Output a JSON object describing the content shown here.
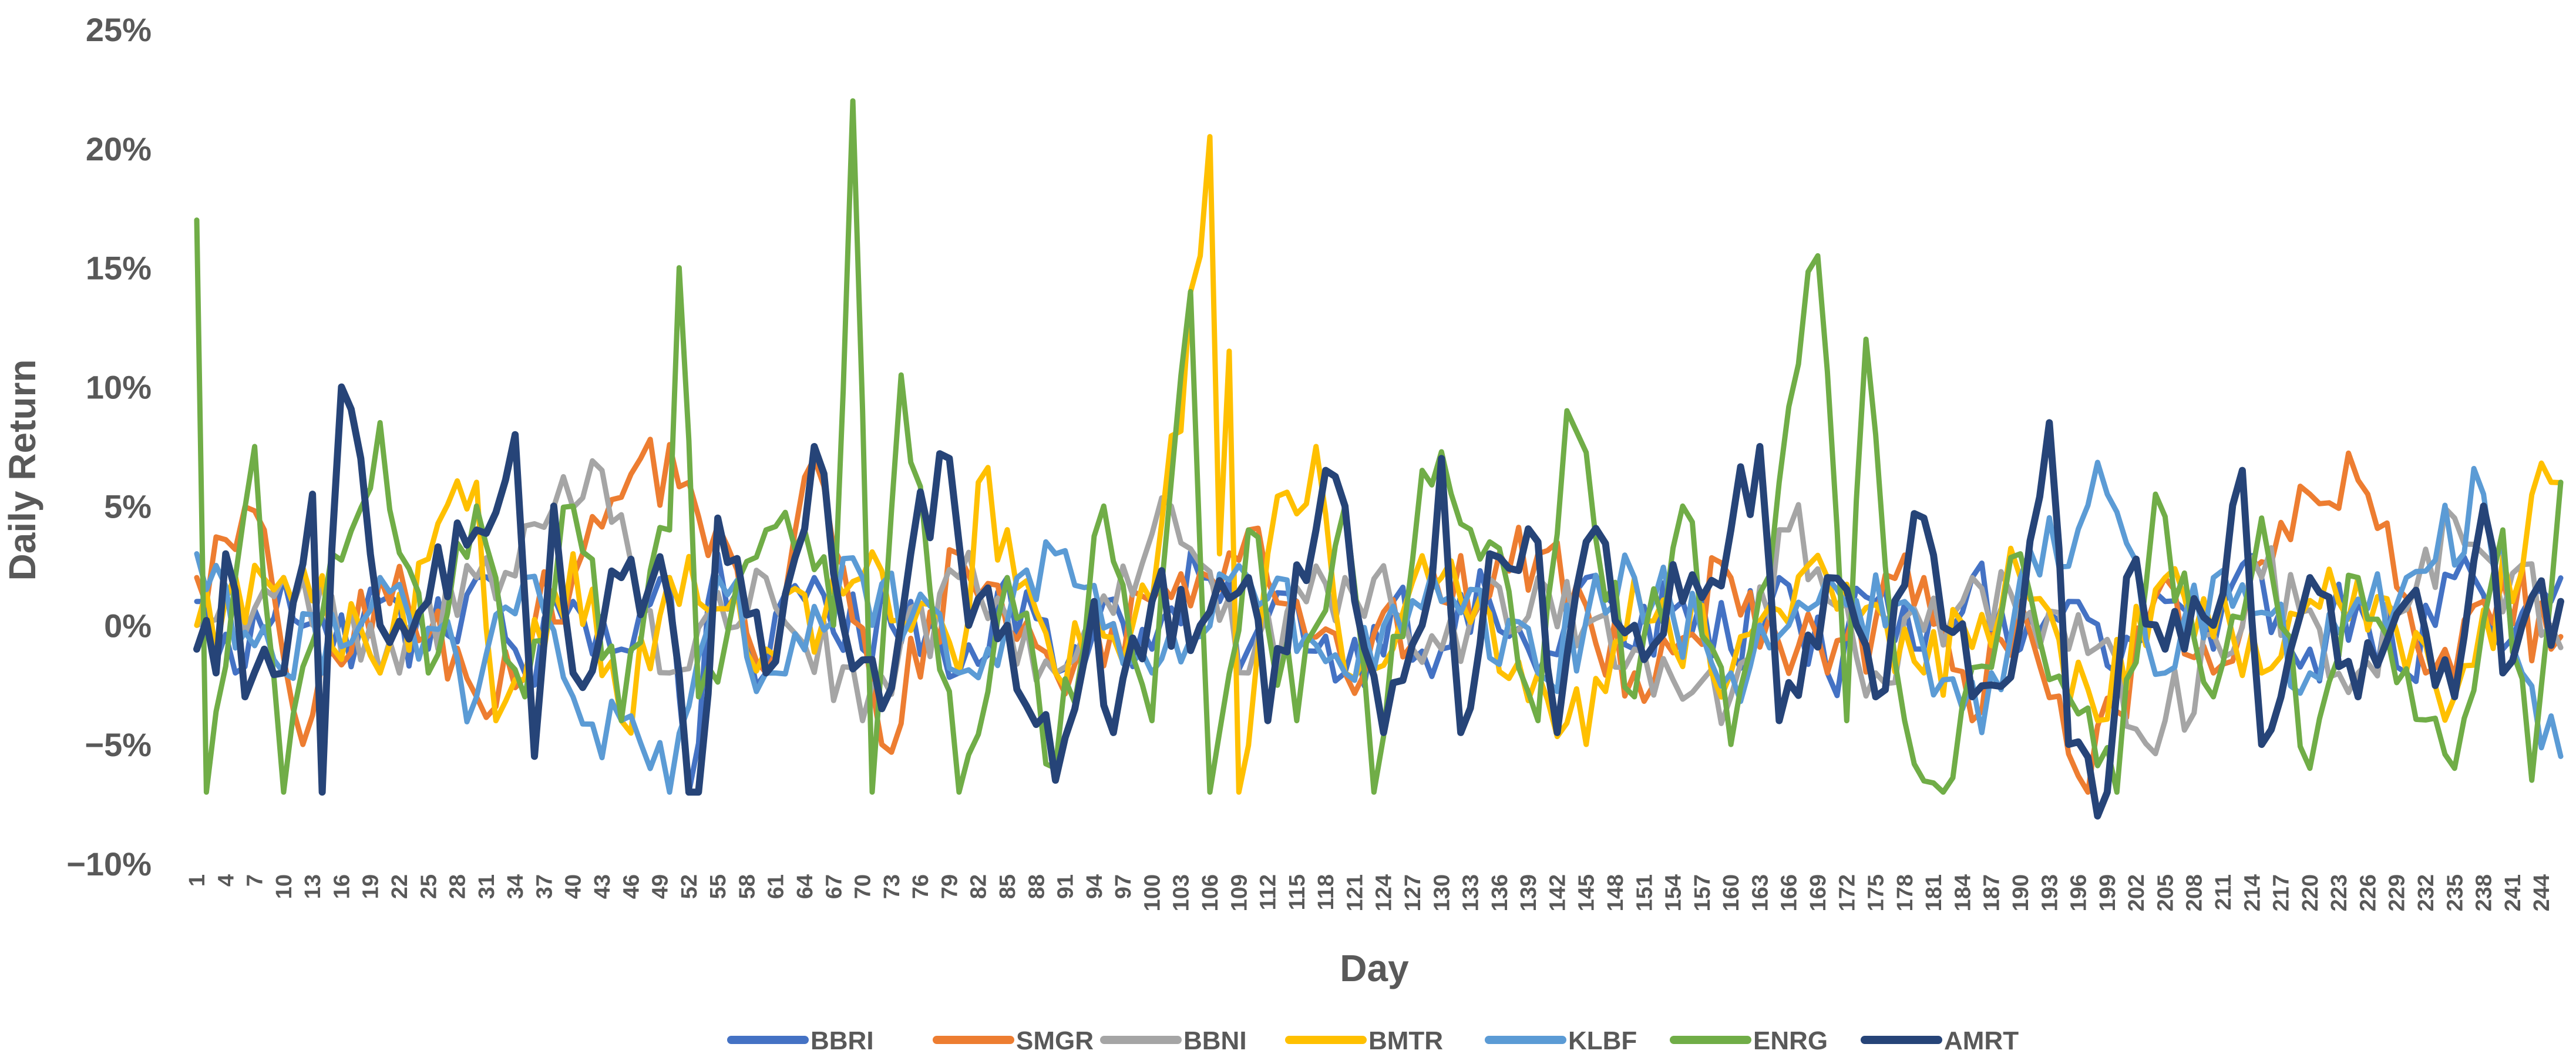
{
  "chart_data": {
    "type": "line",
    "title": "",
    "xlabel": "Day",
    "ylabel": "Daily Return",
    "ylim": [
      -0.1,
      0.25
    ],
    "yticks": [
      {
        "value": 0.25,
        "label": "25%"
      },
      {
        "value": 0.2,
        "label": "20%"
      },
      {
        "value": 0.15,
        "label": "15%"
      },
      {
        "value": 0.1,
        "label": "10%"
      },
      {
        "value": 0.05,
        "label": "5%"
      },
      {
        "value": 0.0,
        "label": "0%"
      },
      {
        "value": -0.05,
        "label": "−5%"
      },
      {
        "value": -0.1,
        "label": "−10%"
      }
    ],
    "x_start": 1,
    "x_end": 246,
    "x_tick_step": 3,
    "grid": false,
    "legend_position": "bottom",
    "series": [
      {
        "name": "BBRI",
        "color": "#4472C4",
        "width": 9,
        "anchors": [
          [
            1,
            0.01
          ],
          [
            5,
            -0.02
          ],
          [
            10,
            0.02
          ],
          [
            15,
            -0.01
          ],
          [
            20,
            0.01
          ],
          [
            25,
            -0.01
          ],
          [
            30,
            0.02
          ],
          [
            35,
            -0.02
          ],
          [
            40,
            0.01
          ],
          [
            45,
            -0.01
          ],
          [
            50,
            0.02
          ],
          [
            52,
            -0.07
          ],
          [
            55,
            0.03
          ],
          [
            60,
            -0.02
          ],
          [
            65,
            0.02
          ],
          [
            70,
            -0.01
          ],
          [
            75,
            0.01
          ],
          [
            80,
            -0.02
          ],
          [
            85,
            0.02
          ],
          [
            90,
            -0.02
          ],
          [
            95,
            0.01
          ],
          [
            100,
            -0.01
          ],
          [
            105,
            0.02
          ],
          [
            110,
            -0.01
          ],
          [
            115,
            0.01
          ],
          [
            120,
            -0.02
          ],
          [
            125,
            0.01
          ],
          [
            130,
            -0.01
          ],
          [
            135,
            0.01
          ],
          [
            140,
            -0.02
          ],
          [
            145,
            0.02
          ],
          [
            150,
            -0.01
          ],
          [
            155,
            0.01
          ],
          [
            160,
            -0.01
          ],
          [
            165,
            0.02
          ],
          [
            170,
            -0.02
          ],
          [
            175,
            0.01
          ],
          [
            180,
            -0.01
          ],
          [
            185,
            0.02
          ],
          [
            190,
            -0.01
          ],
          [
            195,
            0.01
          ],
          [
            200,
            -0.02
          ],
          [
            205,
            0.01
          ],
          [
            210,
            -0.01
          ],
          [
            215,
            0.02
          ],
          [
            220,
            -0.01
          ],
          [
            225,
            0.01
          ],
          [
            230,
            -0.02
          ],
          [
            235,
            0.02
          ],
          [
            240,
            -0.01
          ],
          [
            245,
            0.01
          ]
        ]
      },
      {
        "name": "SMGR",
        "color": "#ED7D31",
        "width": 9,
        "anchors": [
          [
            1,
            0.02
          ],
          [
            8,
            0.04
          ],
          [
            12,
            -0.05
          ],
          [
            20,
            0.02
          ],
          [
            30,
            -0.03
          ],
          [
            40,
            0.02
          ],
          [
            47,
            0.07
          ],
          [
            52,
            0.06
          ],
          [
            60,
            -0.02
          ],
          [
            65,
            0.07
          ],
          [
            72,
            -0.05
          ],
          [
            80,
            0.03
          ],
          [
            90,
            -0.02
          ],
          [
            100,
            0.01
          ],
          [
            110,
            0.04
          ],
          [
            120,
            -0.02
          ],
          [
            130,
            0.01
          ],
          [
            140,
            0.03
          ],
          [
            150,
            -0.02
          ],
          [
            160,
            0.02
          ],
          [
            170,
            -0.02
          ],
          [
            180,
            0.02
          ],
          [
            185,
            -0.04
          ],
          [
            190,
            0.01
          ],
          [
            197,
            -0.07
          ],
          [
            205,
            0.02
          ],
          [
            210,
            -0.02
          ],
          [
            220,
            0.055
          ],
          [
            226,
            0.055
          ],
          [
            232,
            -0.02
          ],
          [
            240,
            0.02
          ],
          [
            245,
            -0.01
          ]
        ]
      },
      {
        "name": "BBNI",
        "color": "#A5A5A5",
        "width": 9,
        "anchors": [
          [
            1,
            0.0
          ],
          [
            10,
            0.02
          ],
          [
            20,
            -0.02
          ],
          [
            30,
            0.02
          ],
          [
            43,
            0.065
          ],
          [
            50,
            -0.02
          ],
          [
            60,
            0.02
          ],
          [
            70,
            -0.04
          ],
          [
            80,
            0.02
          ],
          [
            90,
            -0.02
          ],
          [
            102,
            0.05
          ],
          [
            110,
            -0.02
          ],
          [
            120,
            0.02
          ],
          [
            130,
            -0.01
          ],
          [
            140,
            0.02
          ],
          [
            150,
            -0.01
          ],
          [
            160,
            -0.03
          ],
          [
            166,
            0.04
          ],
          [
            175,
            -0.02
          ],
          [
            185,
            0.02
          ],
          [
            195,
            -0.01
          ],
          [
            205,
            -0.04
          ],
          [
            215,
            0.02
          ],
          [
            225,
            -0.02
          ],
          [
            235,
            0.045
          ],
          [
            245,
            0.0
          ]
        ]
      },
      {
        "name": "BMTR",
        "color": "#FFC000",
        "width": 9,
        "anchors": [
          [
            1,
            0.0
          ],
          [
            10,
            0.02
          ],
          [
            20,
            -0.02
          ],
          [
            30,
            0.06
          ],
          [
            32,
            -0.04
          ],
          [
            40,
            0.03
          ],
          [
            45,
            -0.04
          ],
          [
            50,
            0.02
          ],
          [
            60,
            -0.01
          ],
          [
            70,
            0.02
          ],
          [
            80,
            -0.02
          ],
          [
            82,
            0.06
          ],
          [
            90,
            -0.02
          ],
          [
            100,
            0.01
          ],
          [
            105,
            0.155
          ],
          [
            106,
            0.205
          ],
          [
            107,
            0.03
          ],
          [
            108,
            0.115
          ],
          [
            109,
            -0.07
          ],
          [
            112,
            0.03
          ],
          [
            117,
            0.075
          ],
          [
            120,
            -0.02
          ],
          [
            130,
            0.02
          ],
          [
            140,
            -0.02
          ],
          [
            145,
            -0.05
          ],
          [
            150,
            0.02
          ],
          [
            160,
            -0.02
          ],
          [
            170,
            0.02
          ],
          [
            180,
            -0.02
          ],
          [
            190,
            0.02
          ],
          [
            198,
            -0.04
          ],
          [
            205,
            0.02
          ],
          [
            215,
            -0.02
          ],
          [
            225,
            0.02
          ],
          [
            235,
            -0.03
          ],
          [
            245,
            0.06
          ]
        ]
      },
      {
        "name": "KLBF",
        "color": "#5B9BD5",
        "width": 9,
        "anchors": [
          [
            1,
            0.03
          ],
          [
            10,
            -0.02
          ],
          [
            20,
            0.02
          ],
          [
            30,
            -0.03
          ],
          [
            35,
            0.02
          ],
          [
            40,
            -0.03
          ],
          [
            50,
            -0.07
          ],
          [
            55,
            0.02
          ],
          [
            60,
            -0.02
          ],
          [
            70,
            0.02
          ],
          [
            80,
            -0.02
          ],
          [
            90,
            0.03
          ],
          [
            100,
            -0.02
          ],
          [
            110,
            0.02
          ],
          [
            120,
            -0.02
          ],
          [
            130,
            0.01
          ],
          [
            140,
            -0.02
          ],
          [
            150,
            0.02
          ],
          [
            160,
            -0.02
          ],
          [
            170,
            0.02
          ],
          [
            180,
            -0.01
          ],
          [
            186,
            -0.045
          ],
          [
            190,
            0.02
          ],
          [
            199,
            0.055
          ],
          [
            205,
            -0.02
          ],
          [
            210,
            0.02
          ],
          [
            220,
            -0.02
          ],
          [
            230,
            0.02
          ],
          [
            238,
            0.055
          ],
          [
            242,
            -0.02
          ],
          [
            246,
            -0.055
          ]
        ]
      },
      {
        "name": "ENRG",
        "color": "#70AD47",
        "width": 9,
        "anchors": [
          [
            1,
            0.17
          ],
          [
            2,
            -0.07
          ],
          [
            5,
            0.02
          ],
          [
            7,
            0.075
          ],
          [
            10,
            -0.07
          ],
          [
            15,
            0.03
          ],
          [
            20,
            0.085
          ],
          [
            25,
            -0.02
          ],
          [
            30,
            0.05
          ],
          [
            35,
            -0.03
          ],
          [
            40,
            0.05
          ],
          [
            45,
            -0.04
          ],
          [
            50,
            0.04
          ],
          [
            51,
            0.15
          ],
          [
            53,
            -0.03
          ],
          [
            60,
            0.04
          ],
          [
            64,
            0.04
          ],
          [
            67,
            0.0
          ],
          [
            69,
            0.22
          ],
          [
            71,
            -0.07
          ],
          [
            74,
            0.105
          ],
          [
            80,
            -0.07
          ],
          [
            85,
            0.02
          ],
          [
            90,
            -0.06
          ],
          [
            95,
            0.05
          ],
          [
            100,
            -0.04
          ],
          [
            104,
            0.14
          ],
          [
            106,
            -0.07
          ],
          [
            110,
            0.04
          ],
          [
            115,
            -0.04
          ],
          [
            120,
            0.05
          ],
          [
            123,
            -0.07
          ],
          [
            128,
            0.065
          ],
          [
            135,
            0.035
          ],
          [
            140,
            -0.04
          ],
          [
            143,
            0.09
          ],
          [
            150,
            -0.03
          ],
          [
            155,
            0.05
          ],
          [
            160,
            -0.05
          ],
          [
            165,
            0.06
          ],
          [
            169,
            0.155
          ],
          [
            172,
            -0.04
          ],
          [
            174,
            0.12
          ],
          [
            178,
            -0.04
          ],
          [
            182,
            -0.07
          ],
          [
            190,
            0.03
          ],
          [
            195,
            -0.03
          ],
          [
            200,
            -0.07
          ],
          [
            204,
            0.055
          ],
          [
            210,
            -0.03
          ],
          [
            215,
            0.045
          ],
          [
            220,
            -0.06
          ],
          [
            225,
            0.02
          ],
          [
            235,
            -0.06
          ],
          [
            240,
            0.04
          ],
          [
            243,
            -0.065
          ],
          [
            246,
            0.06
          ]
        ]
      },
      {
        "name": "AMRT",
        "color": "#264478",
        "width": 12,
        "anchors": [
          [
            1,
            -0.01
          ],
          [
            3,
            -0.02
          ],
          [
            4,
            0.03
          ],
          [
            6,
            -0.03
          ],
          [
            8,
            -0.01
          ],
          [
            10,
            -0.02
          ],
          [
            13,
            0.055
          ],
          [
            14,
            -0.07
          ],
          [
            16,
            0.1
          ],
          [
            18,
            0.07
          ],
          [
            20,
            0.0
          ],
          [
            25,
            0.01
          ],
          [
            30,
            0.04
          ],
          [
            34,
            0.08
          ],
          [
            36,
            -0.055
          ],
          [
            38,
            0.05
          ],
          [
            40,
            -0.02
          ],
          [
            45,
            0.02
          ],
          [
            50,
            0.01
          ],
          [
            52,
            -0.07
          ],
          [
            53,
            -0.07
          ],
          [
            55,
            0.045
          ],
          [
            60,
            -0.02
          ],
          [
            65,
            0.075
          ],
          [
            68,
            0.0
          ],
          [
            72,
            -0.035
          ],
          [
            75,
            0.03
          ],
          [
            79,
            0.07
          ],
          [
            81,
            0.0
          ],
          [
            85,
            0.0
          ],
          [
            90,
            -0.065
          ],
          [
            94,
            0.01
          ],
          [
            96,
            -0.045
          ],
          [
            100,
            0.01
          ],
          [
            105,
            0.0
          ],
          [
            110,
            0.02
          ],
          [
            112,
            -0.04
          ],
          [
            118,
            0.065
          ],
          [
            120,
            0.05
          ],
          [
            124,
            -0.045
          ],
          [
            128,
            0.0
          ],
          [
            130,
            0.07
          ],
          [
            132,
            -0.045
          ],
          [
            135,
            0.03
          ],
          [
            140,
            0.035
          ],
          [
            142,
            -0.045
          ],
          [
            145,
            0.035
          ],
          [
            150,
            0.0
          ],
          [
            155,
            0.01
          ],
          [
            160,
            0.04
          ],
          [
            163,
            0.075
          ],
          [
            165,
            -0.04
          ],
          [
            170,
            0.02
          ],
          [
            175,
            -0.03
          ],
          [
            180,
            0.045
          ],
          [
            185,
            -0.03
          ],
          [
            190,
            0.0
          ],
          [
            193,
            0.085
          ],
          [
            195,
            -0.05
          ],
          [
            199,
            -0.07
          ],
          [
            201,
            0.02
          ],
          [
            205,
            -0.01
          ],
          [
            210,
            0.0
          ],
          [
            213,
            0.065
          ],
          [
            215,
            -0.05
          ],
          [
            220,
            0.02
          ],
          [
            225,
            -0.03
          ],
          [
            230,
            0.01
          ],
          [
            235,
            -0.03
          ],
          [
            238,
            0.05
          ],
          [
            240,
            -0.02
          ],
          [
            242,
            0.0
          ],
          [
            246,
            0.01
          ]
        ]
      }
    ]
  }
}
